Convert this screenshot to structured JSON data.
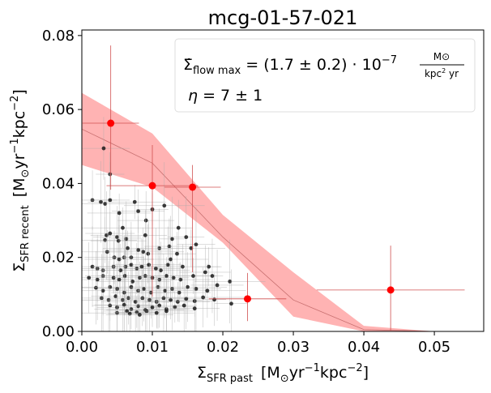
{
  "chart_data": {
    "type": "scatter",
    "title": "mcg-01-57-021",
    "xlabel": {
      "symbol": "Σ",
      "sub": "SFR past",
      "unit_open": "[M",
      "unit_sun": "⊙",
      "unit_mid": "yr",
      "exp1": "−1",
      "unit_mid2": "kpc",
      "exp2": "−2",
      "unit_close": "]"
    },
    "ylabel": {
      "symbol": "Σ",
      "sub": "SFR recent",
      "unit_open": "[M",
      "unit_sun": "⊙",
      "unit_mid": "yr",
      "exp1": "−1",
      "unit_mid2": "kpc",
      "exp2": "−2",
      "unit_close": "]"
    },
    "xlim": [
      0.0,
      0.057
    ],
    "ylim": [
      0.0,
      0.0815
    ],
    "xticks": [
      "0.00",
      "0.01",
      "0.02",
      "0.03",
      "0.04",
      "0.05"
    ],
    "xtick_values": [
      0,
      0.01,
      0.02,
      0.03,
      0.04,
      0.05
    ],
    "yticks": [
      "0.00",
      "0.02",
      "0.04",
      "0.06",
      "0.08"
    ],
    "ytick_values": [
      0,
      0.02,
      0.04,
      0.06,
      0.08
    ],
    "legend": {
      "position": "top-right",
      "line1": {
        "sym": "Σ̇",
        "sub": "flow max",
        "eq": " = (1.7 ± 0.2) · 10",
        "exp": "−7",
        "frac_num": "M⊙",
        "frac_den_a": "kpc",
        "frac_den_exp": "2",
        "frac_den_b": " yr"
      },
      "line2": {
        "sym": "η",
        "eq": " = 7 ± 1"
      }
    },
    "colors": {
      "band": "#ffb3b3",
      "model_line": "#c87070",
      "binned": "#ff0000",
      "binned_err": "#d05050",
      "points": "#1a1a1a",
      "point_err": "#aaaaaa"
    },
    "model_band": {
      "x": [
        0,
        0.01,
        0.02,
        0.03,
        0.04,
        0.05
      ],
      "upper": [
        0.0645,
        0.0535,
        0.0315,
        0.016,
        0.0015,
        0.0
      ],
      "lower": [
        0.045,
        0.039,
        0.024,
        0.004,
        0.0,
        0.0
      ],
      "center": [
        0.0547,
        0.0455,
        0.0255,
        0.0085,
        0.0005,
        0.0
      ]
    },
    "binned_points": [
      {
        "x": 0.0041,
        "y": 0.0563,
        "xerr": 0.004,
        "yerr_low": 0.018,
        "yerr_high": 0.021
      },
      {
        "x": 0.01,
        "y": 0.0394,
        "xerr": 0.0065,
        "yerr_low": 0.03,
        "yerr_high": 0.011
      },
      {
        "x": 0.0157,
        "y": 0.039,
        "xerr": 0.004,
        "yerr_low": 0.023,
        "yerr_high": 0.006
      },
      {
        "x": 0.0235,
        "y": 0.0088,
        "xerr": 0.0055,
        "yerr_low": 0.006,
        "yerr_high": 0.007
      },
      {
        "x": 0.0438,
        "y": 0.0112,
        "xerr": 0.0105,
        "yerr_low": 0.011,
        "yerr_high": 0.012
      }
    ],
    "scatter_points": [
      [
        0.0031,
        0.0495
      ],
      [
        0.004,
        0.0425
      ],
      [
        0.0015,
        0.0355
      ],
      [
        0.0027,
        0.035
      ],
      [
        0.0033,
        0.0345
      ],
      [
        0.004,
        0.0355
      ],
      [
        0.0075,
        0.035
      ],
      [
        0.008,
        0.0325
      ],
      [
        0.0053,
        0.032
      ],
      [
        0.0091,
        0.03
      ],
      [
        0.01,
        0.033
      ],
      [
        0.0117,
        0.034
      ],
      [
        0.0137,
        0.028
      ],
      [
        0.0058,
        0.028
      ],
      [
        0.005,
        0.0255
      ],
      [
        0.0033,
        0.0247
      ],
      [
        0.0035,
        0.026
      ],
      [
        0.004,
        0.0265
      ],
      [
        0.0052,
        0.0245
      ],
      [
        0.0063,
        0.025
      ],
      [
        0.009,
        0.026
      ],
      [
        0.0128,
        0.025
      ],
      [
        0.0148,
        0.0255
      ],
      [
        0.0036,
        0.0215
      ],
      [
        0.0046,
        0.02
      ],
      [
        0.0053,
        0.0195
      ],
      [
        0.006,
        0.02
      ],
      [
        0.0065,
        0.0225
      ],
      [
        0.007,
        0.02
      ],
      [
        0.008,
        0.022
      ],
      [
        0.0087,
        0.0215
      ],
      [
        0.0094,
        0.021
      ],
      [
        0.011,
        0.0225
      ],
      [
        0.0124,
        0.023
      ],
      [
        0.0135,
        0.021
      ],
      [
        0.0155,
        0.0225
      ],
      [
        0.0162,
        0.0235
      ],
      [
        0.0126,
        0.0195
      ],
      [
        0.0015,
        0.0175
      ],
      [
        0.0022,
        0.017
      ],
      [
        0.003,
        0.0165
      ],
      [
        0.0045,
        0.0175
      ],
      [
        0.0055,
        0.0165
      ],
      [
        0.0062,
        0.0175
      ],
      [
        0.007,
        0.018
      ],
      [
        0.0078,
        0.017
      ],
      [
        0.0085,
        0.0175
      ],
      [
        0.0095,
        0.018
      ],
      [
        0.0105,
        0.017
      ],
      [
        0.0112,
        0.0165
      ],
      [
        0.0122,
        0.018
      ],
      [
        0.0143,
        0.0175
      ],
      [
        0.018,
        0.0175
      ],
      [
        0.001,
        0.0145
      ],
      [
        0.0022,
        0.014
      ],
      [
        0.003,
        0.015
      ],
      [
        0.0045,
        0.0145
      ],
      [
        0.0053,
        0.014
      ],
      [
        0.0061,
        0.015
      ],
      [
        0.0072,
        0.0135
      ],
      [
        0.0082,
        0.0145
      ],
      [
        0.009,
        0.015
      ],
      [
        0.01,
        0.0145
      ],
      [
        0.011,
        0.014
      ],
      [
        0.012,
        0.015
      ],
      [
        0.013,
        0.0145
      ],
      [
        0.014,
        0.014
      ],
      [
        0.0158,
        0.015
      ],
      [
        0.0175,
        0.016
      ],
      [
        0.0185,
        0.015
      ],
      [
        0.002,
        0.0118
      ],
      [
        0.003,
        0.011
      ],
      [
        0.004,
        0.012
      ],
      [
        0.005,
        0.0115
      ],
      [
        0.006,
        0.0105
      ],
      [
        0.007,
        0.012
      ],
      [
        0.008,
        0.011
      ],
      [
        0.0088,
        0.0115
      ],
      [
        0.0098,
        0.0105
      ],
      [
        0.0108,
        0.012
      ],
      [
        0.0118,
        0.011
      ],
      [
        0.0128,
        0.0115
      ],
      [
        0.0138,
        0.0105
      ],
      [
        0.015,
        0.012
      ],
      [
        0.0162,
        0.0115
      ],
      [
        0.0178,
        0.011
      ],
      [
        0.0192,
        0.0125
      ],
      [
        0.021,
        0.0135
      ],
      [
        0.0028,
        0.009
      ],
      [
        0.0038,
        0.0085
      ],
      [
        0.0048,
        0.0095
      ],
      [
        0.0058,
        0.0085
      ],
      [
        0.0066,
        0.009
      ],
      [
        0.0076,
        0.008
      ],
      [
        0.0086,
        0.009
      ],
      [
        0.0096,
        0.0085
      ],
      [
        0.0106,
        0.008
      ],
      [
        0.0116,
        0.009
      ],
      [
        0.0126,
        0.0085
      ],
      [
        0.0136,
        0.008
      ],
      [
        0.0148,
        0.0088
      ],
      [
        0.016,
        0.0082
      ],
      [
        0.0172,
        0.0092
      ],
      [
        0.0188,
        0.0086
      ],
      [
        0.0212,
        0.0075
      ],
      [
        0.004,
        0.007
      ],
      [
        0.005,
        0.0065
      ],
      [
        0.006,
        0.0072
      ],
      [
        0.007,
        0.006
      ],
      [
        0.008,
        0.0068
      ],
      [
        0.009,
        0.0058
      ],
      [
        0.01,
        0.0065
      ],
      [
        0.011,
        0.007
      ],
      [
        0.012,
        0.006
      ],
      [
        0.0132,
        0.0066
      ],
      [
        0.0145,
        0.007
      ],
      [
        0.016,
        0.0062
      ],
      [
        0.005,
        0.005
      ],
      [
        0.0064,
        0.0055
      ],
      [
        0.0078,
        0.0052
      ],
      [
        0.0092,
        0.0055
      ],
      [
        0.0106,
        0.005
      ],
      [
        0.012,
        0.0055
      ],
      [
        0.0068,
        0.0048
      ],
      [
        0.0082,
        0.0045
      ]
    ]
  }
}
